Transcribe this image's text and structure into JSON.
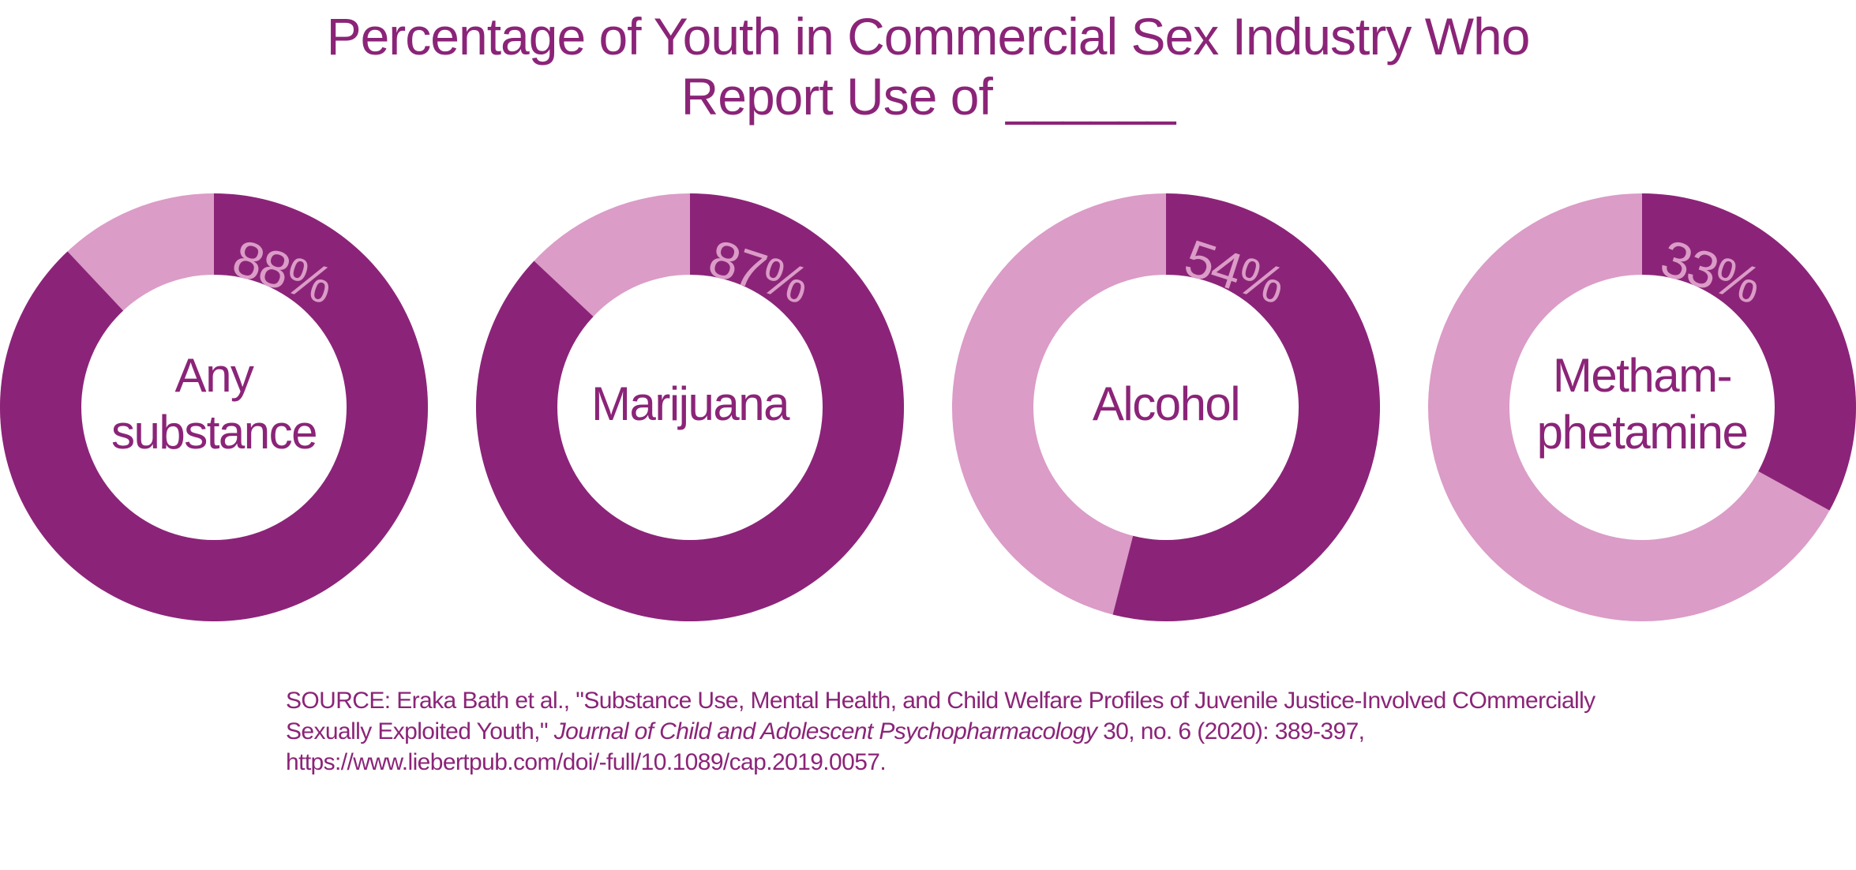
{
  "title": {
    "line1": "Percentage of Youth in Commercial Sex Industry Who",
    "line2": "Report Use of ______"
  },
  "colors": {
    "dark": "#8b2478",
    "light": "#db9cc7",
    "hole": "#ffffff",
    "text": "#8b2478"
  },
  "chart_data": {
    "type": "pie",
    "style": "donut",
    "unit": "%",
    "items": [
      {
        "label_lines": [
          "Any",
          "substance"
        ],
        "value": 88,
        "value_label": "88%"
      },
      {
        "label_lines": [
          "Marijuana"
        ],
        "value": 87,
        "value_label": "87%"
      },
      {
        "label_lines": [
          "Alcohol"
        ],
        "value": 54,
        "value_label": "54%"
      },
      {
        "label_lines": [
          "Metham-",
          "phetamine"
        ],
        "value": 33,
        "value_label": "33%"
      }
    ]
  },
  "source": {
    "prefix": "SOURCE: Eraka Bath et al., \"Substance Use, Mental Health, and Child Welfare Profiles of Juvenile Justice-Involved COmmercially Sexually Exploited Youth,\" ",
    "journal": "Journal of Child and Adolescent Psychopharmacology",
    "suffix": " 30, no. 6 (2020): 389-397, https://www.liebertpub.com/doi/-full/10.1089/cap.2019.0057."
  }
}
